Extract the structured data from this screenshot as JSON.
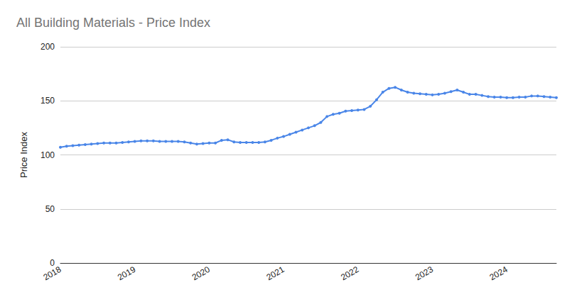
{
  "chart_data": {
    "type": "line",
    "title": "All Building Materials - Price Index",
    "ylabel": "Price Index",
    "categories": [
      "2018",
      null,
      null,
      null,
      null,
      null,
      null,
      null,
      null,
      null,
      null,
      null,
      "2019",
      null,
      null,
      null,
      null,
      null,
      null,
      null,
      null,
      null,
      null,
      null,
      "2020",
      null,
      null,
      null,
      null,
      null,
      null,
      null,
      null,
      null,
      null,
      null,
      "2021",
      null,
      null,
      null,
      null,
      null,
      null,
      null,
      null,
      null,
      null,
      null,
      "2022",
      null,
      null,
      null,
      null,
      null,
      null,
      null,
      null,
      null,
      null,
      null,
      "2023",
      null,
      null,
      null,
      null,
      null,
      null,
      null,
      null,
      null,
      null,
      null,
      "2024",
      null,
      null,
      null,
      null,
      null,
      null,
      null,
      null
    ],
    "values": [
      107,
      108,
      108.5,
      109,
      109.5,
      110,
      110.5,
      111,
      111,
      111,
      111.5,
      112,
      112.5,
      113,
      113,
      113,
      112.5,
      112.5,
      112.5,
      112.5,
      112,
      111,
      110,
      110.5,
      111,
      111,
      113.5,
      114,
      112,
      111.5,
      111.5,
      111.5,
      111.5,
      112,
      113.5,
      115.5,
      117,
      119,
      121,
      123,
      125,
      127,
      130,
      135.5,
      137.5,
      138.5,
      140.5,
      141,
      141.5,
      142,
      145,
      151,
      158,
      161.5,
      162.5,
      160,
      158,
      157,
      156.5,
      156,
      155.5,
      156,
      157,
      158.5,
      160,
      158,
      156,
      156,
      155,
      154,
      153.5,
      153.5,
      153,
      153,
      153.5,
      153.5,
      154.5,
      154.5,
      154,
      153.5,
      153
    ],
    "color": "#4a86e8",
    "marker": "circle",
    "ylim": [
      0,
      200
    ],
    "yticks": [
      0,
      50,
      100,
      150,
      200
    ],
    "grid": true
  }
}
